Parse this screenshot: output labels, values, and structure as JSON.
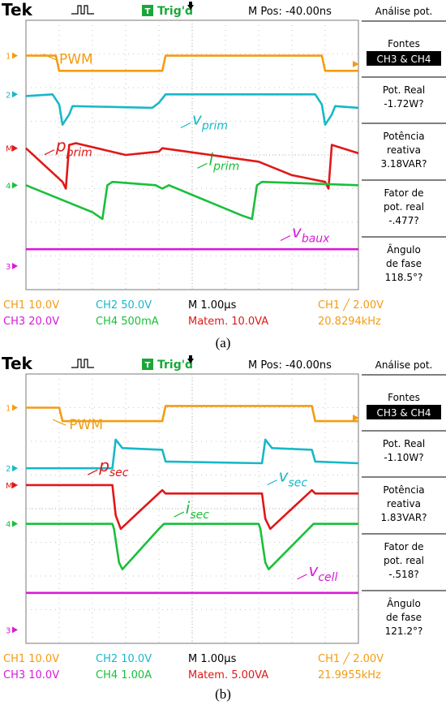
{
  "panels": [
    {
      "caption": "(a)",
      "header": {
        "brand": "Tek",
        "trig_badge": "T",
        "trig_status": "Trig'd",
        "mpos": "M Pos: -40.00ns"
      },
      "menu": {
        "title": "Análise pot.",
        "sources_label": "Fontes",
        "sources_value": "CH3 & CH4",
        "items": [
          [
            "Pot. Real",
            "-1.72W?"
          ],
          [
            "Potência",
            "reativa",
            "3.18VAR?"
          ],
          [
            "Fator de",
            "pot. real",
            "-.477?"
          ],
          [
            "Ângulo",
            "de fase",
            "118.5°?"
          ]
        ]
      },
      "readouts": {
        "ch1": "CH1 10.0V",
        "ch2": "CH2 50.0V",
        "timebase": "M 1.00µs",
        "trig": "CH1 ╱ 2.00V",
        "ch3": "CH3 20.0V",
        "ch4": "CH4 500mA",
        "math": "Matem. 10.0VA",
        "freq": "20.8294kHz"
      },
      "labels": {
        "pwm": "PWM",
        "v": [
          "v",
          "prim"
        ],
        "p": [
          "p",
          "prim"
        ],
        "i": [
          "i",
          "prim"
        ],
        "aux": [
          "v",
          "baux"
        ]
      }
    },
    {
      "caption": "(b)",
      "header": {
        "brand": "Tek",
        "trig_badge": "T",
        "trig_status": "Trig'd",
        "mpos": "M Pos: -40.00ns"
      },
      "menu": {
        "title": "Análise pot.",
        "sources_label": "Fontes",
        "sources_value": "CH3 & CH4",
        "items": [
          [
            "Pot. Real",
            "-1.10W?"
          ],
          [
            "Potência",
            "reativa",
            "1.83VAR?"
          ],
          [
            "Fator de",
            "pot. real",
            "-.518?"
          ],
          [
            "Ângulo",
            "de fase",
            "121.2°?"
          ]
        ]
      },
      "readouts": {
        "ch1": "CH1 10.0V",
        "ch2": "CH2 10.0V",
        "timebase": "M 1.00µs",
        "trig": "CH1 ╱ 2.00V",
        "ch3": "CH3 10.0V",
        "ch4": "CH4 1.00A",
        "math": "Matem. 5.00VA",
        "freq": "21.9955kHz"
      },
      "labels": {
        "pwm": "PWM",
        "v": [
          "v",
          "sec"
        ],
        "p": [
          "p",
          "sec"
        ],
        "i": [
          "i",
          "sec"
        ],
        "aux": [
          "v",
          "cell"
        ]
      }
    }
  ],
  "colors": {
    "pwm": "#f39c12",
    "v": "#17b8c8",
    "p": "#e01818",
    "i": "#19c03a",
    "aux": "#d81ad8",
    "grid": "#7a7a7a"
  },
  "chart_data": [
    {
      "type": "line",
      "title": "(a)",
      "xlabel": "",
      "ylabel": "",
      "x_unit": "µs",
      "xlim": [
        0,
        10
      ],
      "series": [
        {
          "name": "PWM",
          "points": [
            [
              0,
              2.95
            ],
            [
              0.9,
              2.95
            ],
            [
              1.0,
              2.5
            ],
            [
              4.1,
              2.5
            ],
            [
              4.2,
              2.95
            ],
            [
              8.9,
              2.95
            ],
            [
              9.0,
              2.5
            ],
            [
              10,
              2.5
            ]
          ]
        },
        {
          "name": "v_prim",
          "points": [
            [
              0,
              1.75
            ],
            [
              0.8,
              1.8
            ],
            [
              1.0,
              1.5
            ],
            [
              1.1,
              0.9
            ],
            [
              1.3,
              1.2
            ],
            [
              1.4,
              1.45
            ],
            [
              3.8,
              1.4
            ],
            [
              4.0,
              1.55
            ],
            [
              4.2,
              1.8
            ],
            [
              8.7,
              1.8
            ],
            [
              8.9,
              1.5
            ],
            [
              9.0,
              0.9
            ],
            [
              9.2,
              1.2
            ],
            [
              9.3,
              1.45
            ],
            [
              10,
              1.4
            ]
          ]
        },
        {
          "name": "p_prim",
          "points": [
            [
              0,
              0.2
            ],
            [
              1.1,
              -0.8
            ],
            [
              1.2,
              -1.0
            ],
            [
              1.3,
              0.3
            ],
            [
              1.5,
              0.35
            ],
            [
              3.0,
              0
            ],
            [
              4.0,
              0.1
            ],
            [
              4.1,
              0.2
            ],
            [
              7.0,
              -0.2
            ],
            [
              8.0,
              -0.6
            ],
            [
              9.0,
              -0.8
            ],
            [
              9.1,
              -1.0
            ],
            [
              9.2,
              0.3
            ],
            [
              10,
              0.05
            ]
          ]
        },
        {
          "name": "i_prim",
          "points": [
            [
              0,
              -0.9
            ],
            [
              2.0,
              -1.7
            ],
            [
              2.3,
              -1.9
            ],
            [
              2.45,
              -0.9
            ],
            [
              2.6,
              -0.8
            ],
            [
              3.9,
              -0.9
            ],
            [
              4.1,
              -1.0
            ],
            [
              4.3,
              -0.9
            ],
            [
              6.5,
              -1.8
            ],
            [
              6.8,
              -1.9
            ],
            [
              6.95,
              -0.9
            ],
            [
              7.1,
              -0.8
            ],
            [
              10,
              -0.9
            ]
          ]
        },
        {
          "name": "v_baux",
          "points": [
            [
              0,
              -2.8
            ],
            [
              10,
              -2.8
            ]
          ]
        }
      ]
    },
    {
      "type": "line",
      "title": "(b)",
      "xlabel": "",
      "ylabel": "",
      "x_unit": "µs",
      "xlim": [
        0,
        10
      ],
      "series": [
        {
          "name": "PWM",
          "points": [
            [
              0,
              3.0
            ],
            [
              1.0,
              3.0
            ],
            [
              1.1,
              2.6
            ],
            [
              4.1,
              2.6
            ],
            [
              4.2,
              3.05
            ],
            [
              8.6,
              3.05
            ],
            [
              8.7,
              2.6
            ],
            [
              10,
              2.6
            ]
          ]
        },
        {
          "name": "v_sec",
          "points": [
            [
              0,
              1.2
            ],
            [
              2.6,
              1.2
            ],
            [
              2.7,
              2.05
            ],
            [
              2.9,
              1.8
            ],
            [
              4.1,
              1.75
            ],
            [
              4.2,
              1.4
            ],
            [
              7.1,
              1.35
            ],
            [
              7.2,
              2.05
            ],
            [
              7.4,
              1.8
            ],
            [
              8.6,
              1.75
            ],
            [
              8.7,
              1.4
            ],
            [
              10,
              1.35
            ]
          ]
        },
        {
          "name": "p_sec",
          "points": [
            [
              0,
              0.7
            ],
            [
              2.6,
              0.7
            ],
            [
              2.7,
              -0.2
            ],
            [
              2.85,
              -0.6
            ],
            [
              3.5,
              0
            ],
            [
              4.1,
              0.55
            ],
            [
              4.2,
              0.45
            ],
            [
              7.1,
              0.45
            ],
            [
              7.2,
              -0.3
            ],
            [
              7.35,
              -0.6
            ],
            [
              8.0,
              0
            ],
            [
              8.6,
              0.55
            ],
            [
              8.7,
              0.45
            ],
            [
              10,
              0.45
            ]
          ]
        },
        {
          "name": "i_sec",
          "points": [
            [
              0,
              -0.45
            ],
            [
              2.6,
              -0.45
            ],
            [
              2.65,
              -0.6
            ],
            [
              2.8,
              -1.6
            ],
            [
              2.9,
              -1.8
            ],
            [
              4.0,
              -0.6
            ],
            [
              4.15,
              -0.45
            ],
            [
              7.0,
              -0.45
            ],
            [
              7.05,
              -0.6
            ],
            [
              7.2,
              -1.6
            ],
            [
              7.3,
              -1.8
            ],
            [
              8.5,
              -0.6
            ],
            [
              8.65,
              -0.45
            ],
            [
              10,
              -0.45
            ]
          ]
        },
        {
          "name": "v_cell",
          "points": [
            [
              0,
              -2.5
            ],
            [
              10,
              -2.5
            ]
          ]
        }
      ]
    }
  ]
}
